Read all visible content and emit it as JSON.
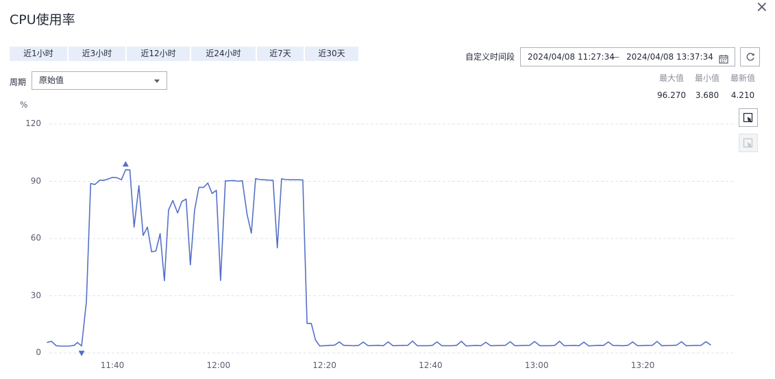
{
  "title": "CPU使用率",
  "close_icon": "close-icon",
  "quick_ranges": [
    "近1小时",
    "近3小时",
    "近12小时",
    "近24小时",
    "近7天",
    "近30天"
  ],
  "period": {
    "label": "周期",
    "value": "原始值"
  },
  "custom_range": {
    "label": "自定义时间段",
    "start": "2024/04/08 11:27:34",
    "separator": "—",
    "end": "2024/04/08 13:37:34"
  },
  "stats": [
    {
      "label": "最大值",
      "value": "96.270"
    },
    {
      "label": "最小值",
      "value": "3.680"
    },
    {
      "label": "最新值",
      "value": "4.210"
    }
  ],
  "colors": {
    "line": "#5470c6",
    "grid": "#e0e3e8",
    "marker": "#5470c6"
  },
  "chart_data": {
    "type": "line",
    "ylabel": "%",
    "ylim": [
      0,
      120
    ],
    "yticks": [
      "0",
      "30",
      "60",
      "90",
      "120"
    ],
    "xticks": [
      "11:40",
      "12:00",
      "12:20",
      "12:40",
      "13:00",
      "13:20"
    ],
    "xlim_minutes": [
      -13,
      116
    ],
    "series": [
      {
        "values": [
          [
            -12.3,
            5.5
          ],
          [
            -11.5,
            6.1
          ],
          [
            -10.6,
            3.8
          ],
          [
            -9.8,
            3.6
          ],
          [
            -9.0,
            3.6
          ],
          [
            -8.2,
            3.6
          ],
          [
            -7.2,
            4.0
          ],
          [
            -6.6,
            5.5
          ],
          [
            -5.8,
            3.7
          ],
          [
            -4.9,
            27.0
          ],
          [
            -4.1,
            88.8
          ],
          [
            -3.3,
            88.3
          ],
          [
            -2.4,
            90.5
          ],
          [
            -1.6,
            90.5
          ],
          [
            -0.8,
            91.2
          ],
          [
            0.0,
            92.0
          ],
          [
            0.8,
            91.9
          ],
          [
            1.7,
            90.8
          ],
          [
            2.5,
            96.0
          ],
          [
            3.3,
            96.0
          ],
          [
            4.1,
            66.0
          ],
          [
            5.0,
            87.7
          ],
          [
            5.8,
            61.6
          ],
          [
            6.6,
            66.0
          ],
          [
            7.4,
            53.0
          ],
          [
            8.2,
            53.5
          ],
          [
            9.0,
            62.6
          ],
          [
            9.8,
            37.9
          ],
          [
            10.6,
            74.9
          ],
          [
            11.4,
            79.9
          ],
          [
            12.3,
            73.4
          ],
          [
            13.1,
            79.4
          ],
          [
            13.9,
            80.7
          ],
          [
            14.7,
            46.2
          ],
          [
            15.5,
            74.9
          ],
          [
            16.3,
            86.8
          ],
          [
            17.2,
            86.8
          ],
          [
            18.0,
            89.1
          ],
          [
            18.8,
            83.6
          ],
          [
            19.6,
            85.3
          ],
          [
            20.4,
            38.0
          ],
          [
            21.3,
            90.2
          ],
          [
            22.1,
            90.3
          ],
          [
            22.9,
            90.4
          ],
          [
            23.7,
            90.0
          ],
          [
            24.5,
            90.3
          ],
          [
            25.4,
            72.6
          ],
          [
            26.2,
            62.8
          ],
          [
            27.0,
            91.4
          ],
          [
            27.8,
            90.9
          ],
          [
            28.6,
            90.8
          ],
          [
            29.4,
            90.6
          ],
          [
            30.3,
            90.5
          ],
          [
            31.1,
            55.1
          ],
          [
            31.9,
            91.3
          ],
          [
            32.7,
            90.9
          ],
          [
            33.5,
            90.8
          ],
          [
            34.3,
            90.8
          ],
          [
            35.1,
            90.8
          ],
          [
            35.9,
            90.7
          ],
          [
            36.7,
            15.5
          ],
          [
            37.5,
            15.5
          ],
          [
            38.3,
            6.8
          ],
          [
            39.1,
            3.7
          ],
          [
            40.0,
            3.8
          ],
          [
            41.9,
            4.1
          ],
          [
            42.8,
            5.8
          ],
          [
            43.6,
            4.0
          ],
          [
            45.5,
            3.8
          ],
          [
            46.4,
            3.9
          ],
          [
            47.3,
            5.7
          ],
          [
            48.2,
            3.8
          ],
          [
            50.1,
            4.0
          ],
          [
            51.1,
            3.8
          ],
          [
            52.0,
            5.8
          ],
          [
            52.9,
            3.8
          ],
          [
            54.8,
            3.9
          ],
          [
            55.7,
            4.0
          ],
          [
            56.6,
            6.2
          ],
          [
            57.5,
            3.8
          ],
          [
            59.4,
            3.8
          ],
          [
            60.3,
            3.9
          ],
          [
            61.2,
            5.8
          ],
          [
            62.1,
            3.8
          ],
          [
            64.0,
            3.8
          ],
          [
            64.9,
            4.0
          ],
          [
            65.8,
            6.1
          ],
          [
            66.7,
            3.7
          ],
          [
            68.6,
            3.9
          ],
          [
            69.5,
            3.8
          ],
          [
            70.4,
            5.6
          ],
          [
            71.3,
            3.8
          ],
          [
            73.2,
            3.9
          ],
          [
            74.1,
            4.0
          ],
          [
            75.0,
            5.9
          ],
          [
            75.9,
            3.8
          ],
          [
            77.8,
            3.9
          ],
          [
            78.7,
            4.0
          ],
          [
            79.6,
            6.0
          ],
          [
            80.6,
            3.8
          ],
          [
            82.5,
            3.8
          ],
          [
            83.4,
            3.9
          ],
          [
            84.3,
            6.1
          ],
          [
            85.2,
            3.8
          ],
          [
            87.1,
            3.9
          ],
          [
            88.0,
            3.8
          ],
          [
            88.9,
            5.7
          ],
          [
            89.8,
            3.7
          ],
          [
            91.7,
            4.0
          ],
          [
            92.6,
            3.9
          ],
          [
            93.5,
            5.8
          ],
          [
            94.4,
            3.9
          ],
          [
            96.3,
            3.8
          ],
          [
            97.2,
            4.0
          ],
          [
            98.1,
            5.8
          ],
          [
            99.0,
            3.8
          ],
          [
            100.9,
            3.9
          ],
          [
            101.8,
            4.0
          ],
          [
            102.7,
            6.0
          ],
          [
            103.6,
            3.8
          ],
          [
            105.5,
            3.9
          ],
          [
            106.4,
            4.1
          ],
          [
            107.3,
            5.9
          ],
          [
            108.2,
            3.8
          ],
          [
            110.1,
            3.9
          ],
          [
            111.0,
            4.0
          ],
          [
            111.9,
            5.9
          ],
          [
            112.8,
            4.2
          ]
        ]
      }
    ],
    "max_marker": {
      "x": 2.5,
      "y": 96.27
    },
    "min_marker": {
      "x": -5.8,
      "y": 3.68
    }
  }
}
